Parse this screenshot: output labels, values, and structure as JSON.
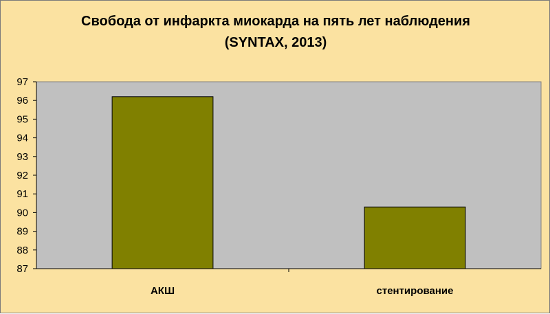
{
  "chart_data": {
    "type": "bar",
    "title": "Свобода от инфаркта миокарда на пять лет наблюдения",
    "subtitle": "(SYNTAX, 2013)",
    "categories": [
      "АКШ",
      "стентирование"
    ],
    "values": [
      96.2,
      90.3
    ],
    "ylim": [
      87,
      97
    ],
    "yticks": [
      87,
      88,
      89,
      90,
      91,
      92,
      93,
      94,
      95,
      96,
      97
    ],
    "grid": false,
    "legend": "none",
    "colors": {
      "bar": "#808000",
      "plot_background": "#c0c0c0",
      "chart_background": "#fbe2a1"
    }
  }
}
